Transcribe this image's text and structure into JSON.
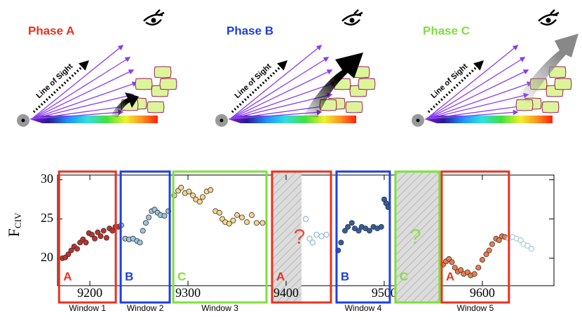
{
  "phases": [
    {
      "title": "Phase A",
      "color": "#e8321e",
      "sight_label": "Line of Sight"
    },
    {
      "title": "Phase B",
      "color": "#1f3fe0",
      "sight_label": "Line of Sight"
    },
    {
      "title": "Phase C",
      "color": "#7ee03a",
      "sight_label": "Line of Sight"
    }
  ],
  "chart_data": {
    "type": "scatter",
    "ylabel": "F",
    "ylabel_sub": "CIV",
    "xlim": [
      9167,
      9673
    ],
    "ylim": [
      16.5,
      30.6
    ],
    "xticks": [
      9200,
      9300,
      9400,
      9500,
      9600
    ],
    "yticks": [
      20,
      25,
      30
    ],
    "windows": [
      {
        "letter": "A",
        "label": "Window 1",
        "color": "#e8321e",
        "range": [
          9168.6,
          9226.4
        ]
      },
      {
        "letter": "B",
        "label": "Window 2",
        "color": "#1f3fe0",
        "range": [
          9231.4,
          9281.4
        ]
      },
      {
        "letter": "C",
        "label": "Window 3",
        "color": "#7ee03a",
        "range": [
          9285,
          9380
        ]
      },
      {
        "letter": "A",
        "color": "#e8321e",
        "range": [
          9385.7,
          9445.7
        ],
        "hatched": [
          9385.7,
          9415.7
        ],
        "annotation": "?"
      },
      {
        "letter": "B",
        "label": "Window 4",
        "color": "#1f3fe0",
        "range": [
          9451.4,
          9505.7
        ]
      },
      {
        "letter": "C",
        "color": "#7ee03a",
        "range": [
          9511.4,
          9556.4
        ],
        "hatched": [
          9511.4,
          9556.4
        ],
        "annotation": "?"
      },
      {
        "letter": "A",
        "label": "Window 5",
        "color": "#e8321e",
        "range": [
          9558.6,
          9627.1
        ]
      }
    ],
    "series": [
      {
        "color": "#c0302a",
        "filled": true,
        "x": [
          9172,
          9175,
          9178,
          9181,
          9184,
          9187,
          9190,
          9193,
          9196,
          9199,
          9202,
          9205,
          9208,
          9211,
          9214,
          9217,
          9220,
          9223,
          9226,
          9229
        ],
        "values": [
          20,
          20.1,
          20.5,
          21,
          21.5,
          21.2,
          22,
          22.4,
          22,
          23.2,
          23,
          22.5,
          23.3,
          22.8,
          23.5,
          22.6,
          23.8,
          23.5,
          24,
          24
        ]
      },
      {
        "color": "#9cc4de",
        "filled": true,
        "x": [
          9232,
          9236,
          9240,
          9244,
          9248,
          9251,
          9254,
          9257,
          9260,
          9263,
          9266,
          9269,
          9272,
          9276,
          9280
        ],
        "values": [
          24.2,
          22.5,
          22.4,
          22.5,
          22.2,
          22,
          23.5,
          24.5,
          25.2,
          26,
          26.2,
          25.8,
          25.5,
          25.4,
          26
        ]
      },
      {
        "color": "#f7d58a",
        "filled": true,
        "x": [
          9286,
          9290,
          9293,
          9297,
          9301,
          9305,
          9308,
          9312,
          9315,
          9319,
          9323,
          9328,
          9332,
          9335,
          9338,
          9342,
          9346,
          9350,
          9355,
          9360,
          9365,
          9370,
          9376
        ],
        "values": [
          28,
          28.6,
          29,
          28.3,
          28.5,
          28,
          27.5,
          27.2,
          27.8,
          28.5,
          28.7,
          26,
          25.8,
          25,
          24.6,
          24.4,
          24.8,
          25.5,
          25.2,
          24.6,
          25.5,
          24.5,
          24.5
        ]
      },
      {
        "color": "#8fb8d8",
        "filled": false,
        "x": [
          9420,
          9424,
          9427,
          9431,
          9436,
          9441
        ],
        "values": [
          25,
          22.5,
          22,
          23,
          22.8,
          23
        ]
      },
      {
        "color": "#2f5f9e",
        "filled": true,
        "x": [
          9453,
          9456,
          9460,
          9463,
          9467,
          9470,
          9474,
          9477,
          9481,
          9485,
          9489,
          9493,
          9497,
          9500,
          9502,
          9504
        ],
        "values": [
          21,
          22,
          23.5,
          24,
          24.5,
          23.8,
          23.5,
          24,
          23.8,
          23.5,
          24,
          23.8,
          24,
          27.5,
          27,
          26.5
        ]
      },
      {
        "color": "#f07a4a",
        "filled": true,
        "x": [
          9560,
          9563,
          9566,
          9569,
          9572,
          9575,
          9578,
          9581,
          9585,
          9588,
          9592,
          9596,
          9600,
          9604,
          9607,
          9610,
          9614,
          9617,
          9620,
          9623
        ],
        "values": [
          19.2,
          19.6,
          19.9,
          19.5,
          18.8,
          18.3,
          18.5,
          18,
          18.2,
          17.8,
          18,
          18.8,
          19.8,
          20.5,
          21,
          21.8,
          22.5,
          22.3,
          22.8,
          22.7
        ]
      },
      {
        "color": "#a9c9dc",
        "filled": false,
        "x": [
          9627,
          9631,
          9635,
          9639,
          9642,
          9646,
          9650
        ],
        "values": [
          22.5,
          22.7,
          22.5,
          22.3,
          21.8,
          21.6,
          21.2
        ]
      }
    ]
  }
}
